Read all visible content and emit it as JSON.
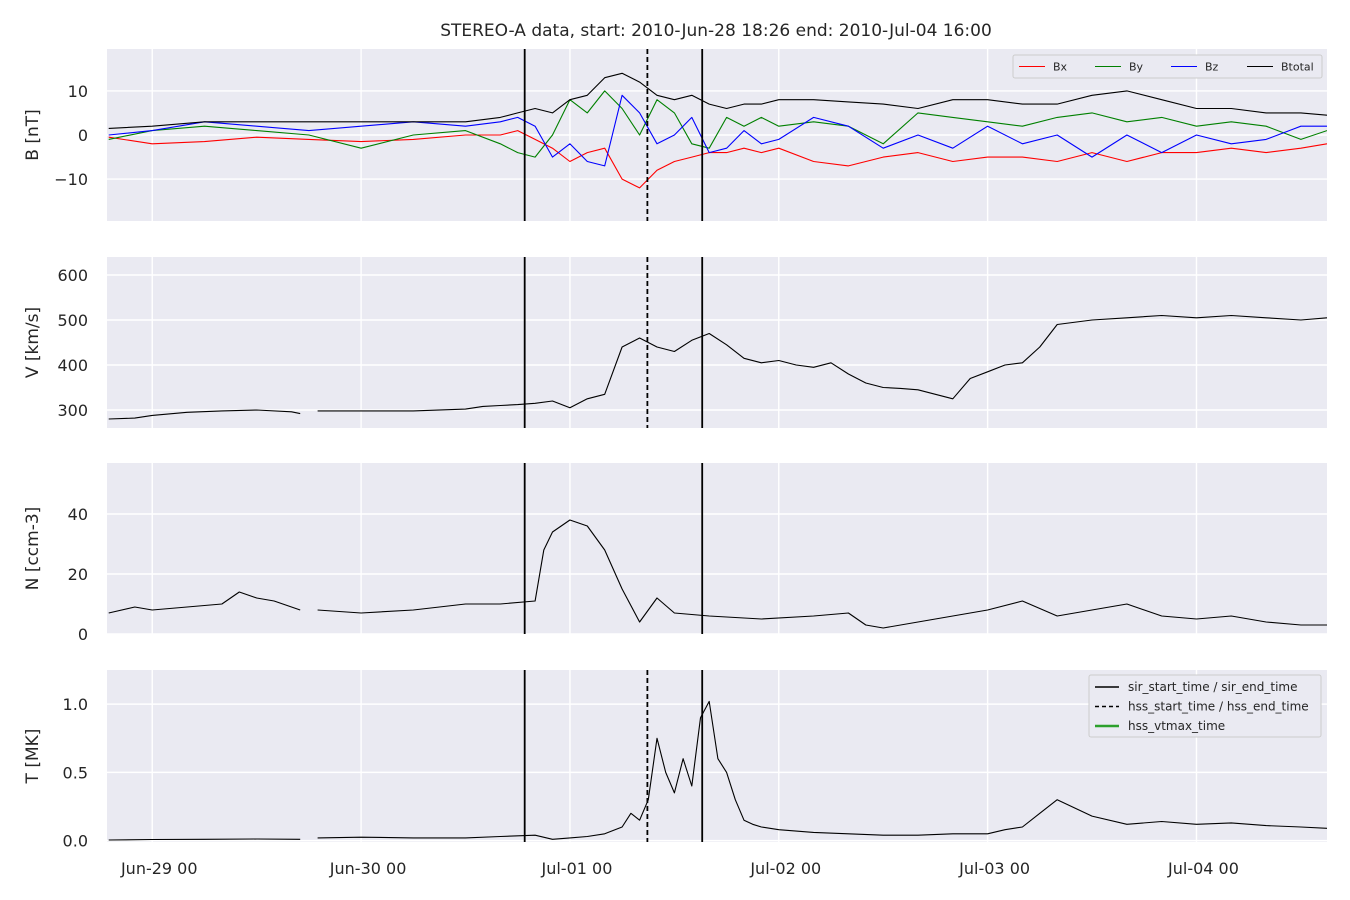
{
  "figure": {
    "title": "STEREO-A data, start: 2010-Jun-28 18:26  end: 2010-Jul-04 16:00"
  },
  "colors": {
    "axes_background": "#EAEAF2",
    "grid": "#FFFFFF",
    "Bx": "#FF0000",
    "By": "#008000",
    "Bz": "#0000FF",
    "Btotal": "#000000",
    "V": "#000000",
    "N": "#000000",
    "T": "#000000",
    "event_lines": "#000000",
    "hss_vtmax": "#2CA02C"
  },
  "chart_data": [
    {
      "type": "line",
      "ylabel": "B [nT]",
      "ylim": [
        -19.5,
        19.5
      ],
      "yticks": [
        -10,
        0,
        10
      ],
      "ytick_labels": [
        "−10",
        "0",
        "10"
      ],
      "xlim_hours": [
        -5.2,
        135
      ],
      "x_unit": "hours since Jun-29 00",
      "grid": true,
      "legend": {
        "placement": "upper-right",
        "ncol": 4,
        "entries": [
          "Bx",
          "By",
          "Bz",
          "Btotal"
        ]
      },
      "series": [
        {
          "name": "Bx",
          "x": [
            -5,
            0,
            6,
            12,
            18,
            24,
            30,
            36,
            40,
            42,
            44,
            46,
            48,
            50,
            52,
            54,
            56,
            58,
            60,
            62,
            64,
            66,
            68,
            70,
            72,
            76,
            80,
            84,
            88,
            92,
            96,
            100,
            104,
            108,
            112,
            116,
            120,
            124,
            128,
            132,
            135
          ],
          "values": [
            -0.5,
            -2,
            -1.5,
            -0.5,
            -1,
            -1.5,
            -1,
            0,
            0,
            1,
            -1,
            -3,
            -6,
            -4,
            -3,
            -10,
            -12,
            -8,
            -6,
            -5,
            -4,
            -4,
            -3,
            -4,
            -3,
            -6,
            -7,
            -5,
            -4,
            -6,
            -5,
            -5,
            -6,
            -4,
            -6,
            -4,
            -4,
            -3,
            -4,
            -3,
            -2
          ]
        },
        {
          "name": "By",
          "x": [
            -5,
            0,
            6,
            12,
            18,
            24,
            30,
            36,
            40,
            42,
            44,
            46,
            48,
            50,
            52,
            54,
            56,
            58,
            60,
            62,
            64,
            66,
            68,
            70,
            72,
            76,
            80,
            84,
            88,
            92,
            96,
            100,
            104,
            108,
            112,
            116,
            120,
            124,
            128,
            132,
            135
          ],
          "values": [
            -1,
            1,
            2,
            1,
            0,
            -3,
            0,
            1,
            -2,
            -4,
            -5,
            0,
            8,
            5,
            10,
            6,
            0,
            8,
            5,
            -2,
            -3,
            4,
            2,
            4,
            2,
            3,
            2,
            -2,
            5,
            4,
            3,
            2,
            4,
            5,
            3,
            4,
            2,
            3,
            2,
            -1,
            1
          ]
        },
        {
          "name": "Bz",
          "x": [
            -5,
            0,
            6,
            12,
            18,
            24,
            30,
            36,
            40,
            42,
            44,
            46,
            48,
            50,
            52,
            54,
            56,
            58,
            60,
            62,
            64,
            66,
            68,
            70,
            72,
            76,
            80,
            84,
            88,
            92,
            96,
            100,
            104,
            108,
            112,
            116,
            120,
            124,
            128,
            132,
            135
          ],
          "values": [
            0,
            1,
            3,
            2,
            1,
            2,
            3,
            2,
            3,
            4,
            2,
            -5,
            -2,
            -6,
            -7,
            9,
            5,
            -2,
            0,
            4,
            -4,
            -3,
            1,
            -2,
            -1,
            4,
            2,
            -3,
            0,
            -3,
            2,
            -2,
            0,
            -5,
            0,
            -4,
            0,
            -2,
            -1,
            2,
            2
          ]
        },
        {
          "name": "Btotal",
          "x": [
            -5,
            0,
            6,
            12,
            18,
            24,
            30,
            36,
            40,
            42,
            44,
            46,
            48,
            50,
            52,
            54,
            56,
            58,
            60,
            62,
            64,
            66,
            68,
            70,
            72,
            76,
            80,
            84,
            88,
            92,
            96,
            100,
            104,
            108,
            112,
            116,
            120,
            124,
            128,
            132,
            135
          ],
          "values": [
            1.5,
            2,
            3,
            3,
            3,
            3,
            3,
            3,
            4,
            5,
            6,
            5,
            8,
            9,
            13,
            14,
            12,
            9,
            8,
            9,
            7,
            6,
            7,
            7,
            8,
            8,
            7.5,
            7,
            6,
            8,
            8,
            7,
            7,
            9,
            10,
            8,
            6,
            6,
            5,
            5,
            4.5
          ]
        }
      ]
    },
    {
      "type": "line",
      "ylabel": "V [km/s]",
      "ylim": [
        260,
        640
      ],
      "yticks": [
        300,
        400,
        500,
        600
      ],
      "xlim_hours": [
        -5.2,
        135
      ],
      "grid": true,
      "series": [
        {
          "name": "",
          "segments": [
            {
              "x": [
                -5,
                -2,
                0,
                4,
                8,
                12,
                16,
                17
              ],
              "values": [
                280,
                282,
                288,
                295,
                298,
                300,
                296,
                292
              ]
            },
            {
              "x": [
                19,
                24,
                30,
                36,
                38,
                40,
                42,
                44,
                46,
                48,
                50,
                52,
                54,
                56,
                58,
                60,
                62,
                64,
                66,
                68,
                70,
                72,
                74,
                76,
                78,
                80,
                82,
                84,
                86,
                88,
                90,
                92,
                94,
                96,
                98,
                100,
                102,
                104,
                108,
                112,
                116,
                120,
                124,
                128,
                132,
                135
              ],
              "values": [
                298,
                298,
                298,
                302,
                308,
                310,
                312,
                315,
                320,
                305,
                325,
                335,
                440,
                460,
                440,
                430,
                455,
                470,
                445,
                415,
                405,
                410,
                400,
                395,
                405,
                380,
                360,
                350,
                348,
                345,
                335,
                325,
                370,
                385,
                400,
                405,
                440,
                490,
                500,
                505,
                510,
                505,
                510,
                505,
                500,
                505
              ]
            }
          ]
        }
      ]
    },
    {
      "type": "line",
      "ylabel": "N [ccm-3]",
      "ylim": [
        0,
        57
      ],
      "yticks": [
        0,
        20,
        40
      ],
      "xlim_hours": [
        -5.2,
        135
      ],
      "grid": true,
      "series": [
        {
          "name": "",
          "segments": [
            {
              "x": [
                -5,
                -2,
                0,
                4,
                8,
                10,
                12,
                14,
                16,
                17
              ],
              "values": [
                7,
                9,
                8,
                9,
                10,
                14,
                12,
                11,
                9,
                8
              ]
            },
            {
              "x": [
                19,
                24,
                30,
                36,
                40,
                44,
                45,
                46,
                48,
                50,
                52,
                54,
                56,
                58,
                60,
                64,
                70,
                76,
                80,
                82,
                84,
                88,
                92,
                96,
                100,
                104,
                108,
                112,
                116,
                120,
                124,
                128,
                132,
                135
              ],
              "values": [
                8,
                7,
                8,
                10,
                10,
                11,
                28,
                34,
                38,
                36,
                28,
                15,
                4,
                12,
                7,
                6,
                5,
                6,
                7,
                3,
                2,
                4,
                6,
                8,
                11,
                6,
                8,
                10,
                6,
                5,
                6,
                4,
                3,
                3
              ]
            }
          ]
        }
      ]
    },
    {
      "type": "line",
      "ylabel": "T [MK]",
      "ylim": [
        -0.01,
        1.25
      ],
      "yticks": [
        0.0,
        0.5,
        1.0
      ],
      "ytick_labels": [
        "0.0",
        "0.5",
        "1.0"
      ],
      "xlim_hours": [
        -5.2,
        135
      ],
      "xticks": [
        0,
        24,
        48,
        72,
        96,
        120
      ],
      "xtick_labels": [
        "Jun-29 00",
        "Jun-30 00",
        "Jul-01 00",
        "Jul-02 00",
        "Jul-03 00",
        "Jul-04 00"
      ],
      "grid": true,
      "legend": {
        "placement": "upper-right",
        "ncol": 1,
        "entries": [
          "sir_start_time / sir_end_time",
          "hss_start_time / hss_end_time",
          "hss_vtmax_time"
        ]
      },
      "series": [
        {
          "name": "",
          "segments": [
            {
              "x": [
                -5,
                0,
                6,
                12,
                17
              ],
              "values": [
                0.005,
                0.008,
                0.01,
                0.012,
                0.01
              ]
            },
            {
              "x": [
                19,
                24,
                30,
                36,
                40,
                44,
                46,
                48,
                50,
                52,
                54,
                55,
                56,
                57,
                58,
                59,
                60,
                61,
                62,
                63,
                64,
                65,
                66,
                67,
                68,
                69,
                70,
                72,
                76,
                80,
                84,
                88,
                92,
                96,
                98,
                100,
                102,
                104,
                108,
                112,
                116,
                120,
                124,
                128,
                132,
                135
              ],
              "values": [
                0.02,
                0.025,
                0.02,
                0.02,
                0.03,
                0.04,
                0.01,
                0.02,
                0.03,
                0.05,
                0.1,
                0.2,
                0.15,
                0.3,
                0.75,
                0.5,
                0.35,
                0.6,
                0.4,
                0.9,
                1.02,
                0.6,
                0.5,
                0.3,
                0.15,
                0.12,
                0.1,
                0.08,
                0.06,
                0.05,
                0.04,
                0.04,
                0.05,
                0.05,
                0.08,
                0.1,
                0.2,
                0.3,
                0.18,
                0.12,
                0.14,
                0.12,
                0.13,
                0.11,
                0.1,
                0.09
              ]
            }
          ]
        }
      ]
    }
  ],
  "event_lines": {
    "sir_start_hours": 42.8,
    "sir_end_hours": 63.2,
    "hss_start_hours": 56.9
  }
}
